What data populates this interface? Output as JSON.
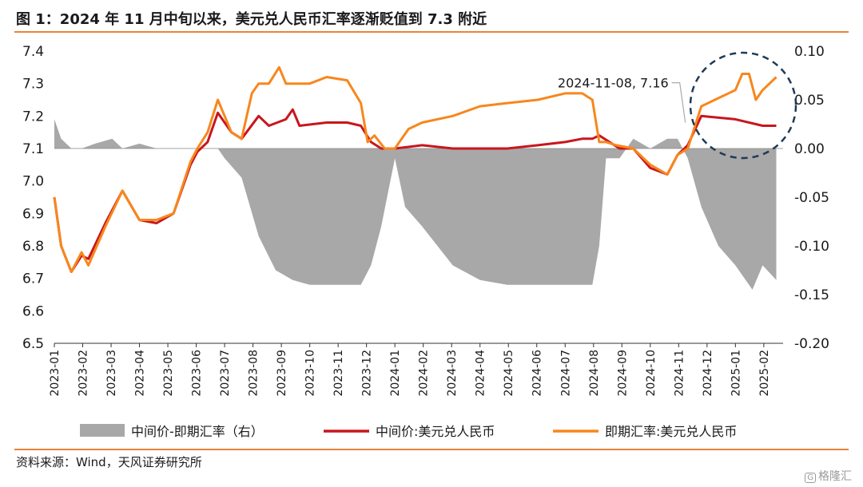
{
  "header": {
    "title": "图 1：2024 年 11 月中旬以来，美元兑人民币汇率逐渐贬值到 7.3 附近"
  },
  "footer": {
    "source": "资料来源：Wind，天风证券研究所",
    "watermark": "格隆汇",
    "watermark_mark": "G"
  },
  "colors": {
    "rule": "#e8833a",
    "central": "#c8161d",
    "spot": "#f7871c",
    "spread": "#a8a8a8",
    "circle": "#1f3b57"
  },
  "chart_data": {
    "type": "line",
    "title": "图 1：2024 年 11 月中旬以来，美元兑人民币汇率逐渐贬值到 7.3 附近",
    "x_ticks": [
      "2023-01",
      "2023-02",
      "2023-03",
      "2023-04",
      "2023-05",
      "2023-06",
      "2023-07",
      "2023-08",
      "2023-09",
      "2023-10",
      "2023-11",
      "2023-12",
      "2024-01",
      "2024-02",
      "2024-03",
      "2024-04",
      "2024-05",
      "2024-06",
      "2024-07",
      "2024-08",
      "2024-09",
      "2024-10",
      "2024-11",
      "2024-12",
      "2025-01",
      "2025-02"
    ],
    "y_left": {
      "ticks": [
        "7.4",
        "7.3",
        "7.2",
        "7.1",
        "7.0",
        "6.9",
        "6.8",
        "6.7",
        "6.6",
        "6.5"
      ],
      "range": [
        6.5,
        7.4
      ]
    },
    "y_right": {
      "ticks": [
        "0.10",
        "0.05",
        "0.00",
        "-0.05",
        "-0.10",
        "-0.15",
        "-0.20"
      ],
      "range": [
        -0.2,
        0.1
      ]
    },
    "series": [
      {
        "name": "中间价-即期汇率（右）",
        "axis": "right",
        "style": "area",
        "x": [
          2023.0,
          2023.02,
          2023.05,
          2023.08,
          2023.12,
          2023.17,
          2023.2,
          2023.25,
          2023.3,
          2023.35,
          2023.4,
          2023.45,
          2023.48,
          2023.5,
          2023.55,
          2023.6,
          2023.65,
          2023.7,
          2023.75,
          2023.8,
          2023.85,
          2023.9,
          2023.93,
          2023.96,
          2024.0,
          2024.03,
          2024.08,
          2024.17,
          2024.25,
          2024.33,
          2024.42,
          2024.5,
          2024.58,
          2024.6,
          2024.62,
          2024.66,
          2024.7,
          2024.75,
          2024.8,
          2024.83,
          2024.86,
          2024.9,
          2024.95,
          2025.0,
          2025.05,
          2025.08,
          2025.12
        ],
        "values": [
          0.03,
          0.01,
          0.0,
          0.0,
          0.005,
          0.01,
          0.0,
          0.005,
          0.0,
          0.0,
          0.0,
          0.0,
          0.0,
          -0.01,
          -0.03,
          -0.09,
          -0.125,
          -0.135,
          -0.14,
          -0.14,
          -0.14,
          -0.14,
          -0.12,
          -0.08,
          -0.01,
          -0.06,
          -0.08,
          -0.12,
          -0.135,
          -0.14,
          -0.14,
          -0.14,
          -0.14,
          -0.1,
          -0.01,
          -0.01,
          0.01,
          0.0,
          0.01,
          0.01,
          -0.01,
          -0.06,
          -0.1,
          -0.12,
          -0.145,
          -0.12,
          -0.135
        ]
      },
      {
        "name": "中间价:美元兑人民币",
        "axis": "left",
        "style": "line",
        "x": [
          2023.0,
          2023.02,
          2023.05,
          2023.08,
          2023.1,
          2023.15,
          2023.2,
          2023.25,
          2023.3,
          2023.35,
          2023.4,
          2023.42,
          2023.45,
          2023.48,
          2023.5,
          2023.52,
          2023.55,
          2023.6,
          2023.63,
          2023.68,
          2023.7,
          2023.72,
          2023.8,
          2023.86,
          2023.9,
          2023.93,
          2023.96,
          2024.0,
          2024.08,
          2024.17,
          2024.25,
          2024.33,
          2024.42,
          2024.5,
          2024.55,
          2024.58,
          2024.6,
          2024.63,
          2024.66,
          2024.7,
          2024.75,
          2024.8,
          2024.83,
          2024.86,
          2024.9,
          2025.0,
          2025.08,
          2025.12
        ],
        "values": [
          6.95,
          6.8,
          6.72,
          6.77,
          6.76,
          6.87,
          6.97,
          6.88,
          6.87,
          6.9,
          7.05,
          7.09,
          7.12,
          7.21,
          7.18,
          7.15,
          7.13,
          7.2,
          7.17,
          7.19,
          7.22,
          7.17,
          7.18,
          7.18,
          7.17,
          7.12,
          7.1,
          7.1,
          7.11,
          7.1,
          7.1,
          7.1,
          7.11,
          7.12,
          7.13,
          7.13,
          7.14,
          7.12,
          7.1,
          7.1,
          7.04,
          7.02,
          7.08,
          7.11,
          7.2,
          7.19,
          7.17,
          7.17
        ]
      },
      {
        "name": "即期汇率:美元兑人民币",
        "axis": "left",
        "style": "line",
        "x": [
          2023.0,
          2023.02,
          2023.05,
          2023.08,
          2023.1,
          2023.15,
          2023.2,
          2023.25,
          2023.3,
          2023.35,
          2023.4,
          2023.42,
          2023.45,
          2023.48,
          2023.5,
          2023.52,
          2023.55,
          2023.58,
          2023.6,
          2023.63,
          2023.66,
          2023.68,
          2023.7,
          2023.72,
          2023.75,
          2023.8,
          2023.86,
          2023.9,
          2023.92,
          2023.94,
          2023.97,
          2024.0,
          2024.04,
          2024.08,
          2024.17,
          2024.25,
          2024.33,
          2024.42,
          2024.5,
          2024.55,
          2024.58,
          2024.6,
          2024.62,
          2024.65,
          2024.7,
          2024.75,
          2024.8,
          2024.83,
          2024.86,
          2024.9,
          2025.0,
          2025.02,
          2025.04,
          2025.06,
          2025.08,
          2025.1,
          2025.12
        ],
        "values": [
          6.95,
          6.8,
          6.72,
          6.78,
          6.74,
          6.86,
          6.97,
          6.88,
          6.88,
          6.9,
          7.06,
          7.1,
          7.15,
          7.25,
          7.2,
          7.15,
          7.13,
          7.27,
          7.3,
          7.3,
          7.35,
          7.3,
          7.3,
          7.3,
          7.3,
          7.32,
          7.31,
          7.24,
          7.12,
          7.14,
          7.1,
          7.1,
          7.16,
          7.18,
          7.2,
          7.23,
          7.24,
          7.25,
          7.27,
          7.27,
          7.25,
          7.12,
          7.12,
          7.11,
          7.1,
          7.05,
          7.02,
          7.08,
          7.1,
          7.23,
          7.28,
          7.33,
          7.33,
          7.25,
          7.28,
          7.3,
          7.32
        ]
      }
    ],
    "annotations": [
      {
        "text": "2024-11-08, 7.16",
        "x": 2024.86,
        "y": 7.16
      }
    ],
    "legend": [
      "中间价-即期汇率（右）",
      "中间价:美元兑人民币",
      "即期汇率:美元兑人民币"
    ],
    "legend_position": "bottom",
    "grid": false
  }
}
